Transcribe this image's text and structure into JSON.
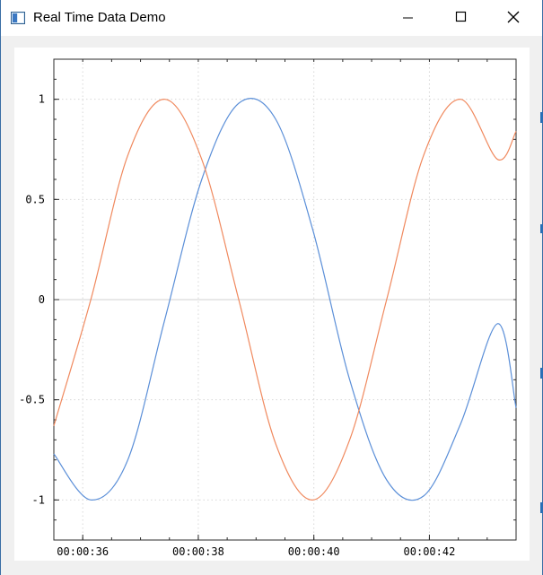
{
  "window": {
    "title": "Real Time Data Demo",
    "controls": [
      "minimize",
      "maximize",
      "close"
    ],
    "icons": {
      "app": "app-window-icon",
      "minimize": "minimize-icon",
      "maximize": "maximize-icon",
      "close": "close-icon"
    }
  },
  "chart_data": {
    "type": "line",
    "title": "",
    "xlabel": "",
    "ylabel": "",
    "x_ticks": [
      "00:00:36",
      "00:00:38",
      "00:00:40",
      "00:00:42"
    ],
    "y_ticks": [
      "1",
      "0.5",
      "0",
      "-0.5",
      "-1"
    ],
    "xlim": [
      "00:00:35.5",
      "00:00:43.5"
    ],
    "ylim": [
      -1.2,
      1.2
    ],
    "grid": true,
    "legend": "none",
    "series": [
      {
        "color": "#5b8fd8",
        "x": [
          "00:00:35.5",
          "00:00:36.14",
          "00:00:36.78",
          "00:00:37.42",
          "00:00:38.06",
          "00:00:38.70",
          "00:00:39.34",
          "00:00:39.98",
          "00:00:40.62",
          "00:00:41.26",
          "00:00:41.90",
          "00:00:42.54",
          "00:00:43.18",
          "00:00:43.5"
        ],
        "y": [
          -0.77,
          -1.0,
          -0.8,
          -0.1,
          0.6,
          0.98,
          0.9,
          0.35,
          -0.4,
          -0.9,
          -0.98,
          -0.62,
          -0.12,
          -0.54
        ]
      },
      {
        "color": "#f0895e",
        "x": [
          "00:00:35.5",
          "00:00:36.14",
          "00:00:36.78",
          "00:00:37.42",
          "00:00:38.06",
          "00:00:38.70",
          "00:00:39.34",
          "00:00:39.98",
          "00:00:40.62",
          "00:00:41.26",
          "00:00:41.90",
          "00:00:42.54",
          "00:00:43.18",
          "00:00:43.5"
        ],
        "y": [
          -0.63,
          0.0,
          0.72,
          1.0,
          0.7,
          0.0,
          -0.72,
          -1.0,
          -0.7,
          0.0,
          0.72,
          1.0,
          0.7,
          0.84
        ]
      }
    ],
    "colors": {
      "grid": "#d7d7d7",
      "axis": "#2b2b2b",
      "zero_line": "#d0d0d0"
    }
  }
}
